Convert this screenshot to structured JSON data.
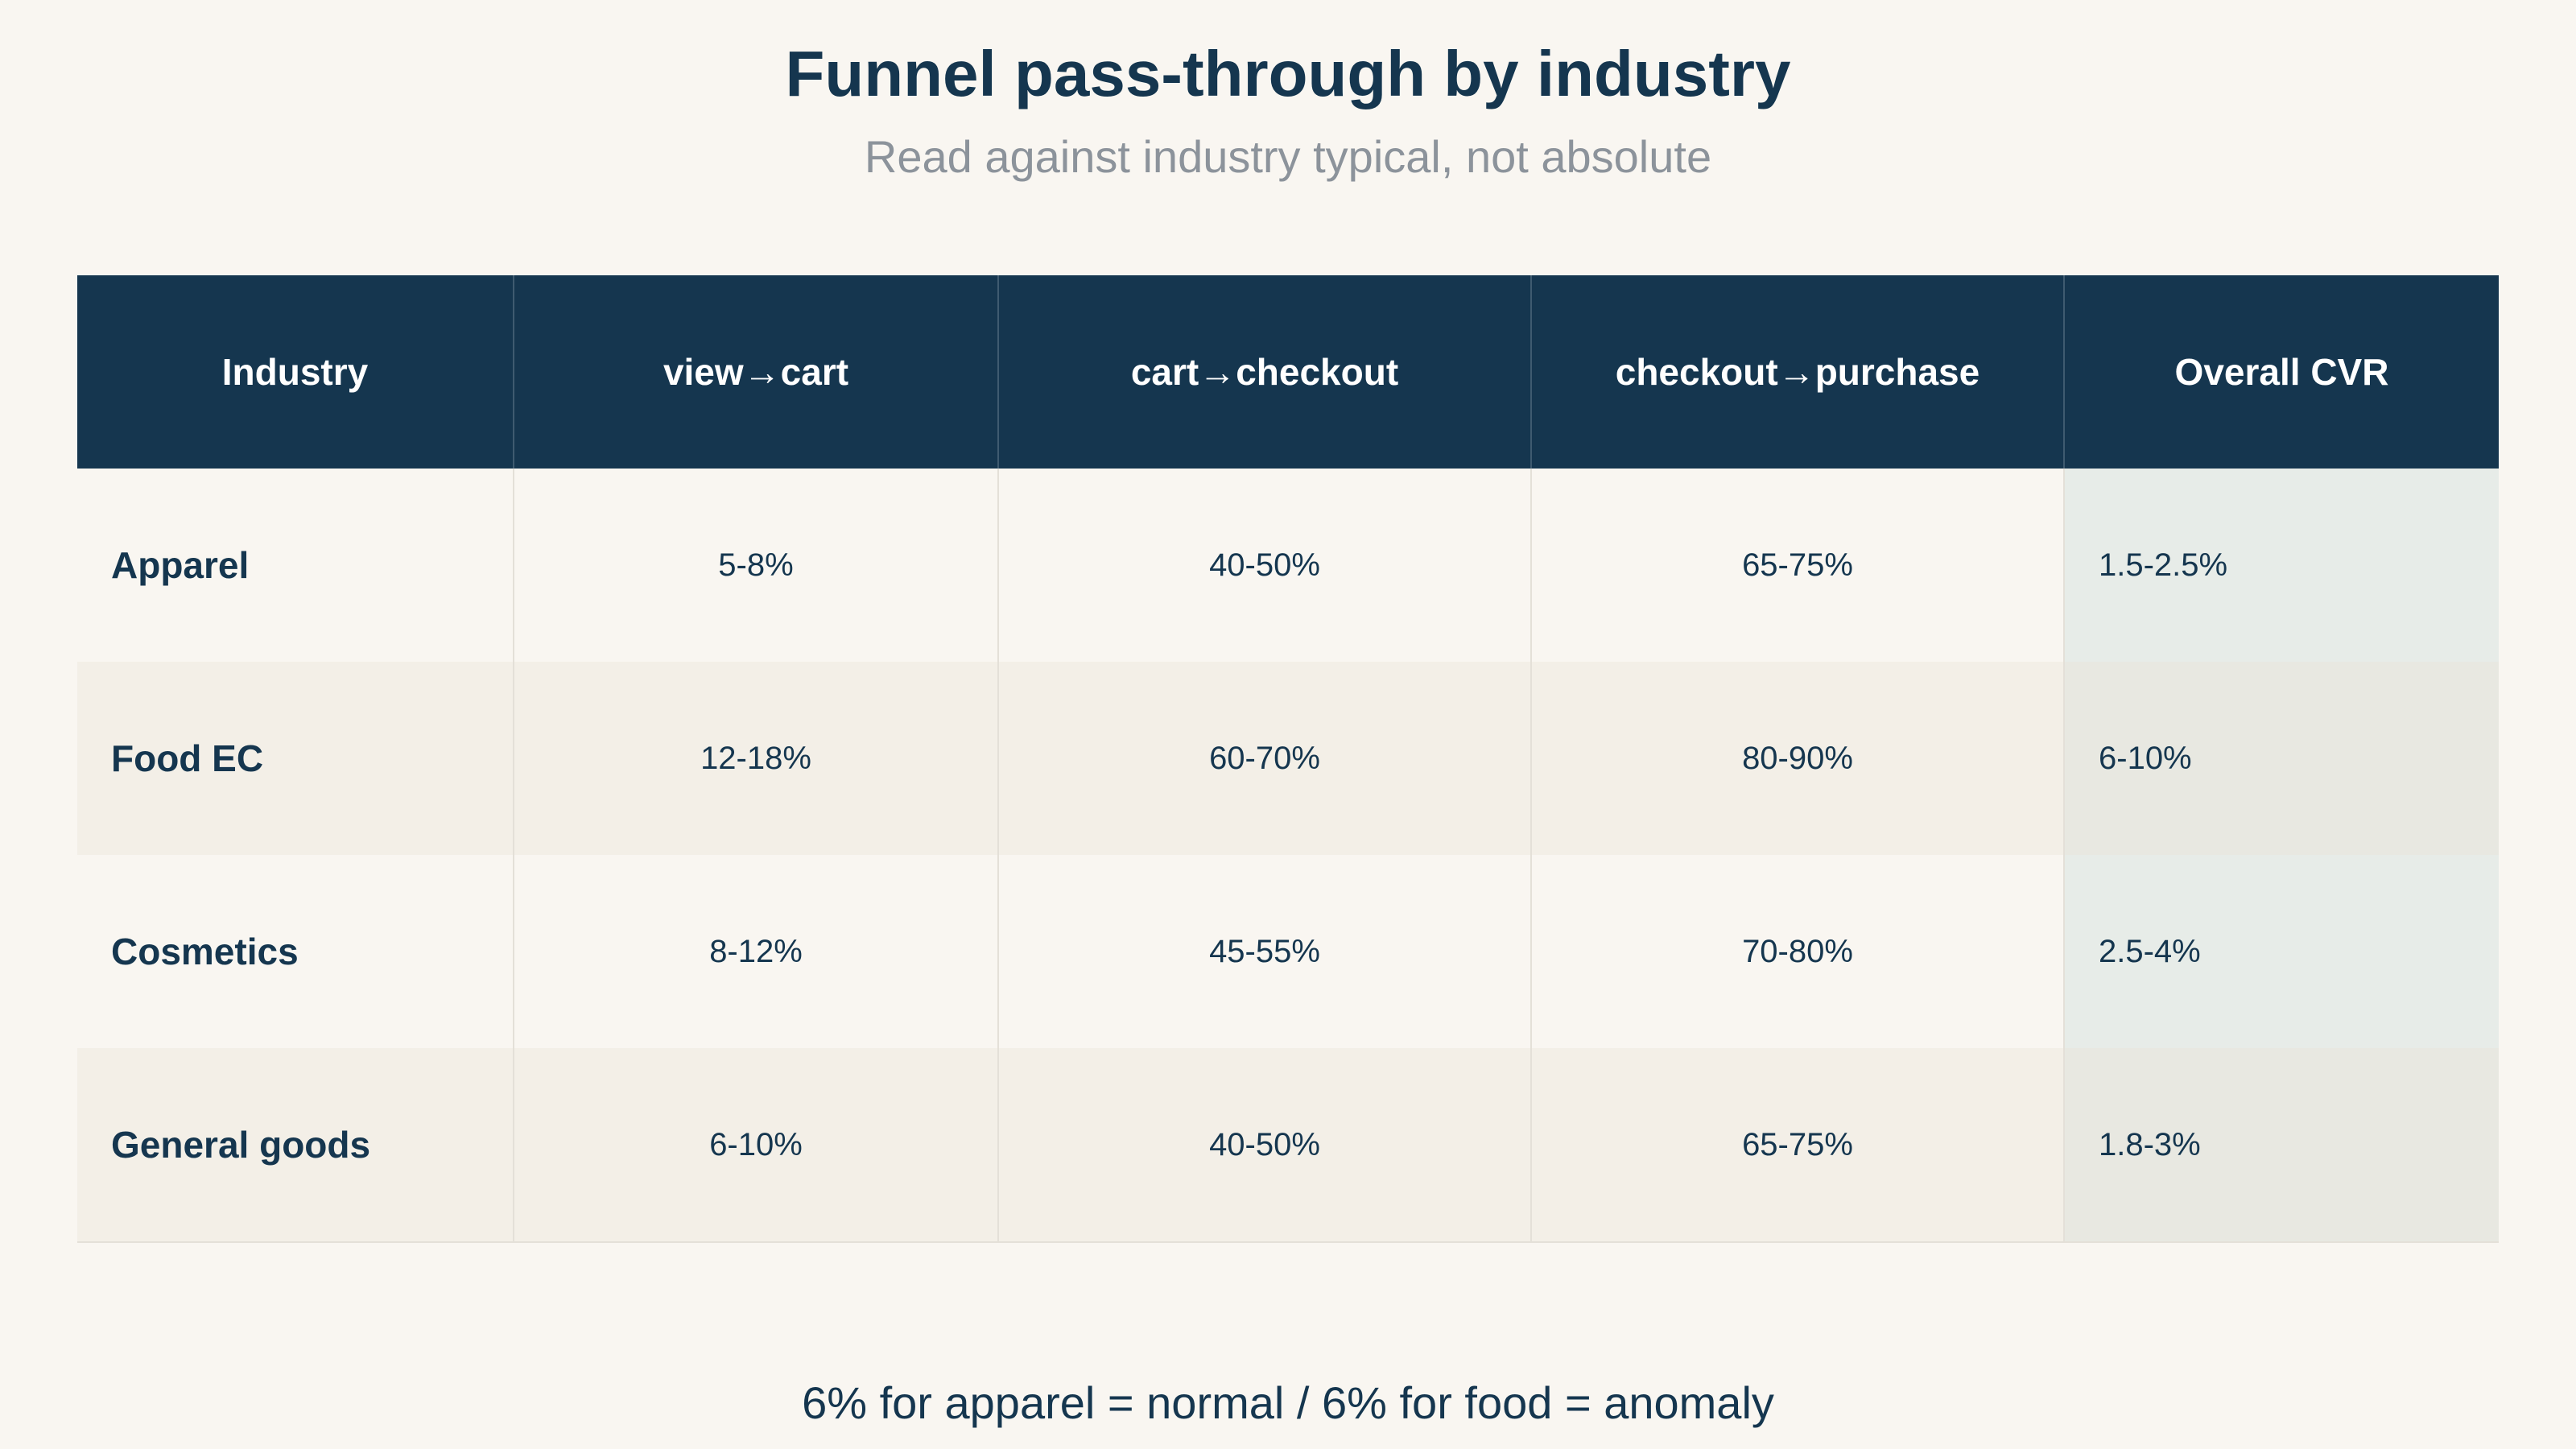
{
  "title": "Funnel pass-through by industry",
  "subtitle": "Read against industry typical, not absolute",
  "footnote": "6% for apparel = normal / 6% for food = anomaly",
  "colors": {
    "header_bg": "#15364f",
    "header_text": "#ffffff",
    "page_bg": "#f9f6f1",
    "row_alt_bg": "#f3efe7",
    "overall_col_bg": "#e7ece8",
    "subtitle_text": "#8c939b"
  },
  "chart_data": {
    "type": "table",
    "title": "Funnel pass-through by industry",
    "subtitle": "Read against industry typical, not absolute",
    "columns": [
      "Industry",
      "view→cart",
      "cart→checkout",
      "checkout→purchase",
      "Overall CVR"
    ],
    "rows": [
      [
        "Apparel",
        "5-8%",
        "40-50%",
        "65-75%",
        "1.5-2.5%"
      ],
      [
        "Food EC",
        "12-18%",
        "60-70%",
        "80-90%",
        "6-10%"
      ],
      [
        "Cosmetics",
        "8-12%",
        "45-55%",
        "70-80%",
        "2.5-4%"
      ],
      [
        "General goods",
        "6-10%",
        "40-50%",
        "65-75%",
        "1.8-3%"
      ]
    ]
  }
}
